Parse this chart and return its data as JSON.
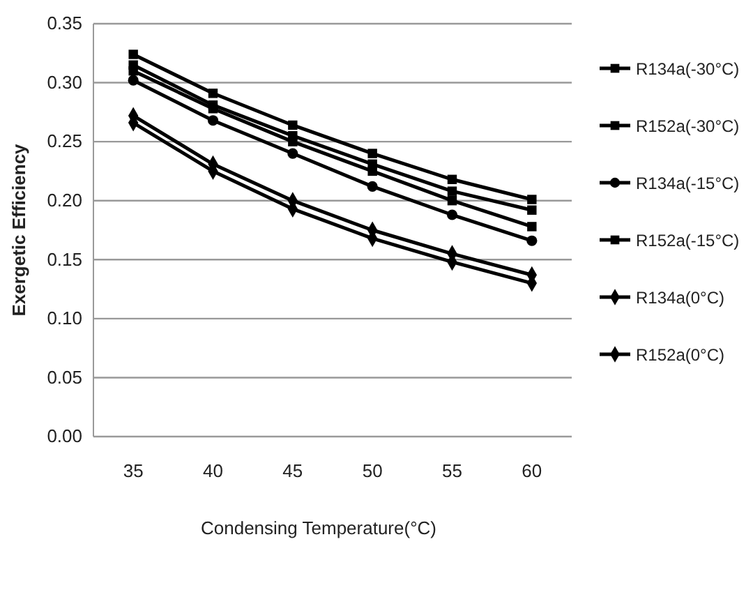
{
  "chart_data": {
    "type": "line",
    "xlabel": "Condensing Temperature(°C)",
    "ylabel": "Exergetic Efficiency",
    "categories": [
      "35",
      "40",
      "45",
      "50",
      "55",
      "60"
    ],
    "ylim": [
      0,
      0.35
    ],
    "yticks": [
      {
        "value": 0,
        "label": "0.00"
      },
      {
        "value": 0.05,
        "label": "0.05"
      },
      {
        "value": 0.1,
        "label": "0.10"
      },
      {
        "value": 0.15,
        "label": "0.15"
      },
      {
        "value": 0.2,
        "label": "0.20"
      },
      {
        "value": 0.25,
        "label": "0.25"
      },
      {
        "value": 0.3,
        "label": "0.30"
      },
      {
        "value": 0.35,
        "label": "0.35"
      }
    ],
    "grid": "y",
    "legend": "right",
    "line_style": "solid",
    "series": [
      {
        "name": "R134a(-30°C)",
        "color": "#000000",
        "marker": "square",
        "values": [
          0.315,
          0.281,
          0.255,
          0.231,
          0.208,
          0.192
        ]
      },
      {
        "name": "R152a(-30°C)",
        "color": "#000000",
        "marker": "square",
        "values": [
          0.324,
          0.291,
          0.264,
          0.24,
          0.218,
          0.201
        ]
      },
      {
        "name": "R134a(-15°C)",
        "color": "#000000",
        "marker": "circle",
        "values": [
          0.302,
          0.268,
          0.24,
          0.212,
          0.188,
          0.166
        ]
      },
      {
        "name": "R152a(-15°C)",
        "color": "#000000",
        "marker": "square",
        "values": [
          0.31,
          0.278,
          0.25,
          0.225,
          0.2,
          0.178
        ]
      },
      {
        "name": "R134a(0°C)",
        "color": "#000000",
        "marker": "diamond",
        "values": [
          0.266,
          0.225,
          0.193,
          0.168,
          0.148,
          0.13
        ]
      },
      {
        "name": "R152a(0°C)",
        "color": "#000000",
        "marker": "diamond",
        "values": [
          0.272,
          0.231,
          0.2,
          0.175,
          0.155,
          0.137
        ]
      }
    ]
  }
}
